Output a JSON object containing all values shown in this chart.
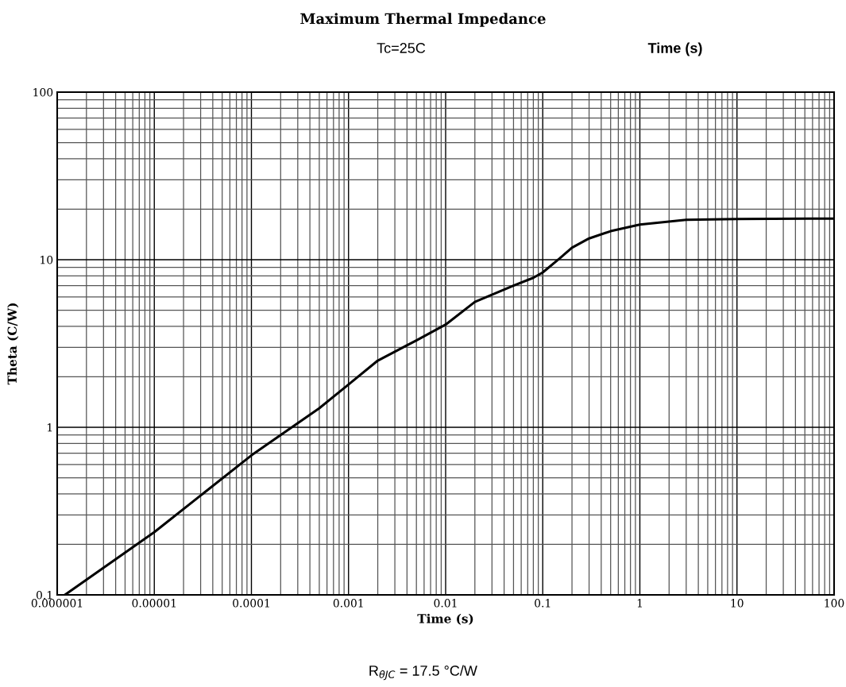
{
  "chart_data": {
    "type": "line",
    "title": "Maximum Thermal Impedance",
    "subtitle": "Tc=25C",
    "xlabel": "Time (s)",
    "ylabel": "Theta (C/W)",
    "annotations": [
      "Time (s)",
      "R$_{θJC}$ = 17.5 °C/W"
    ],
    "log": "xy",
    "grid": true,
    "marker": "none",
    "line_style": "solid",
    "xlim": [
      1e-06,
      100
    ],
    "ylim": [
      0.1,
      100
    ],
    "xticks": [
      {
        "value": 1e-06,
        "label": "0.000001"
      },
      {
        "value": 1e-05,
        "label": "0.00001"
      },
      {
        "value": 0.0001,
        "label": "0.0001"
      },
      {
        "value": 0.001,
        "label": "0.001"
      },
      0.01,
      0.1,
      1,
      10,
      100
    ],
    "yticks": [
      0.1,
      1,
      10,
      100
    ],
    "series": [
      {
        "color": "#000000",
        "x": [
          1.2e-06,
          1e-05,
          0.0001,
          0.0005,
          0.001,
          0.002,
          0.005,
          0.01,
          0.02,
          0.05,
          0.08,
          0.1,
          0.15,
          0.2,
          0.3,
          0.5,
          1,
          3,
          10,
          100
        ],
        "values": [
          0.1,
          0.237,
          0.68,
          1.3,
          1.8,
          2.5,
          3.3,
          4.1,
          5.6,
          7.0,
          7.8,
          8.4,
          10.2,
          11.8,
          13.4,
          14.8,
          16.2,
          17.3,
          17.5,
          17.6
        ]
      }
    ]
  }
}
